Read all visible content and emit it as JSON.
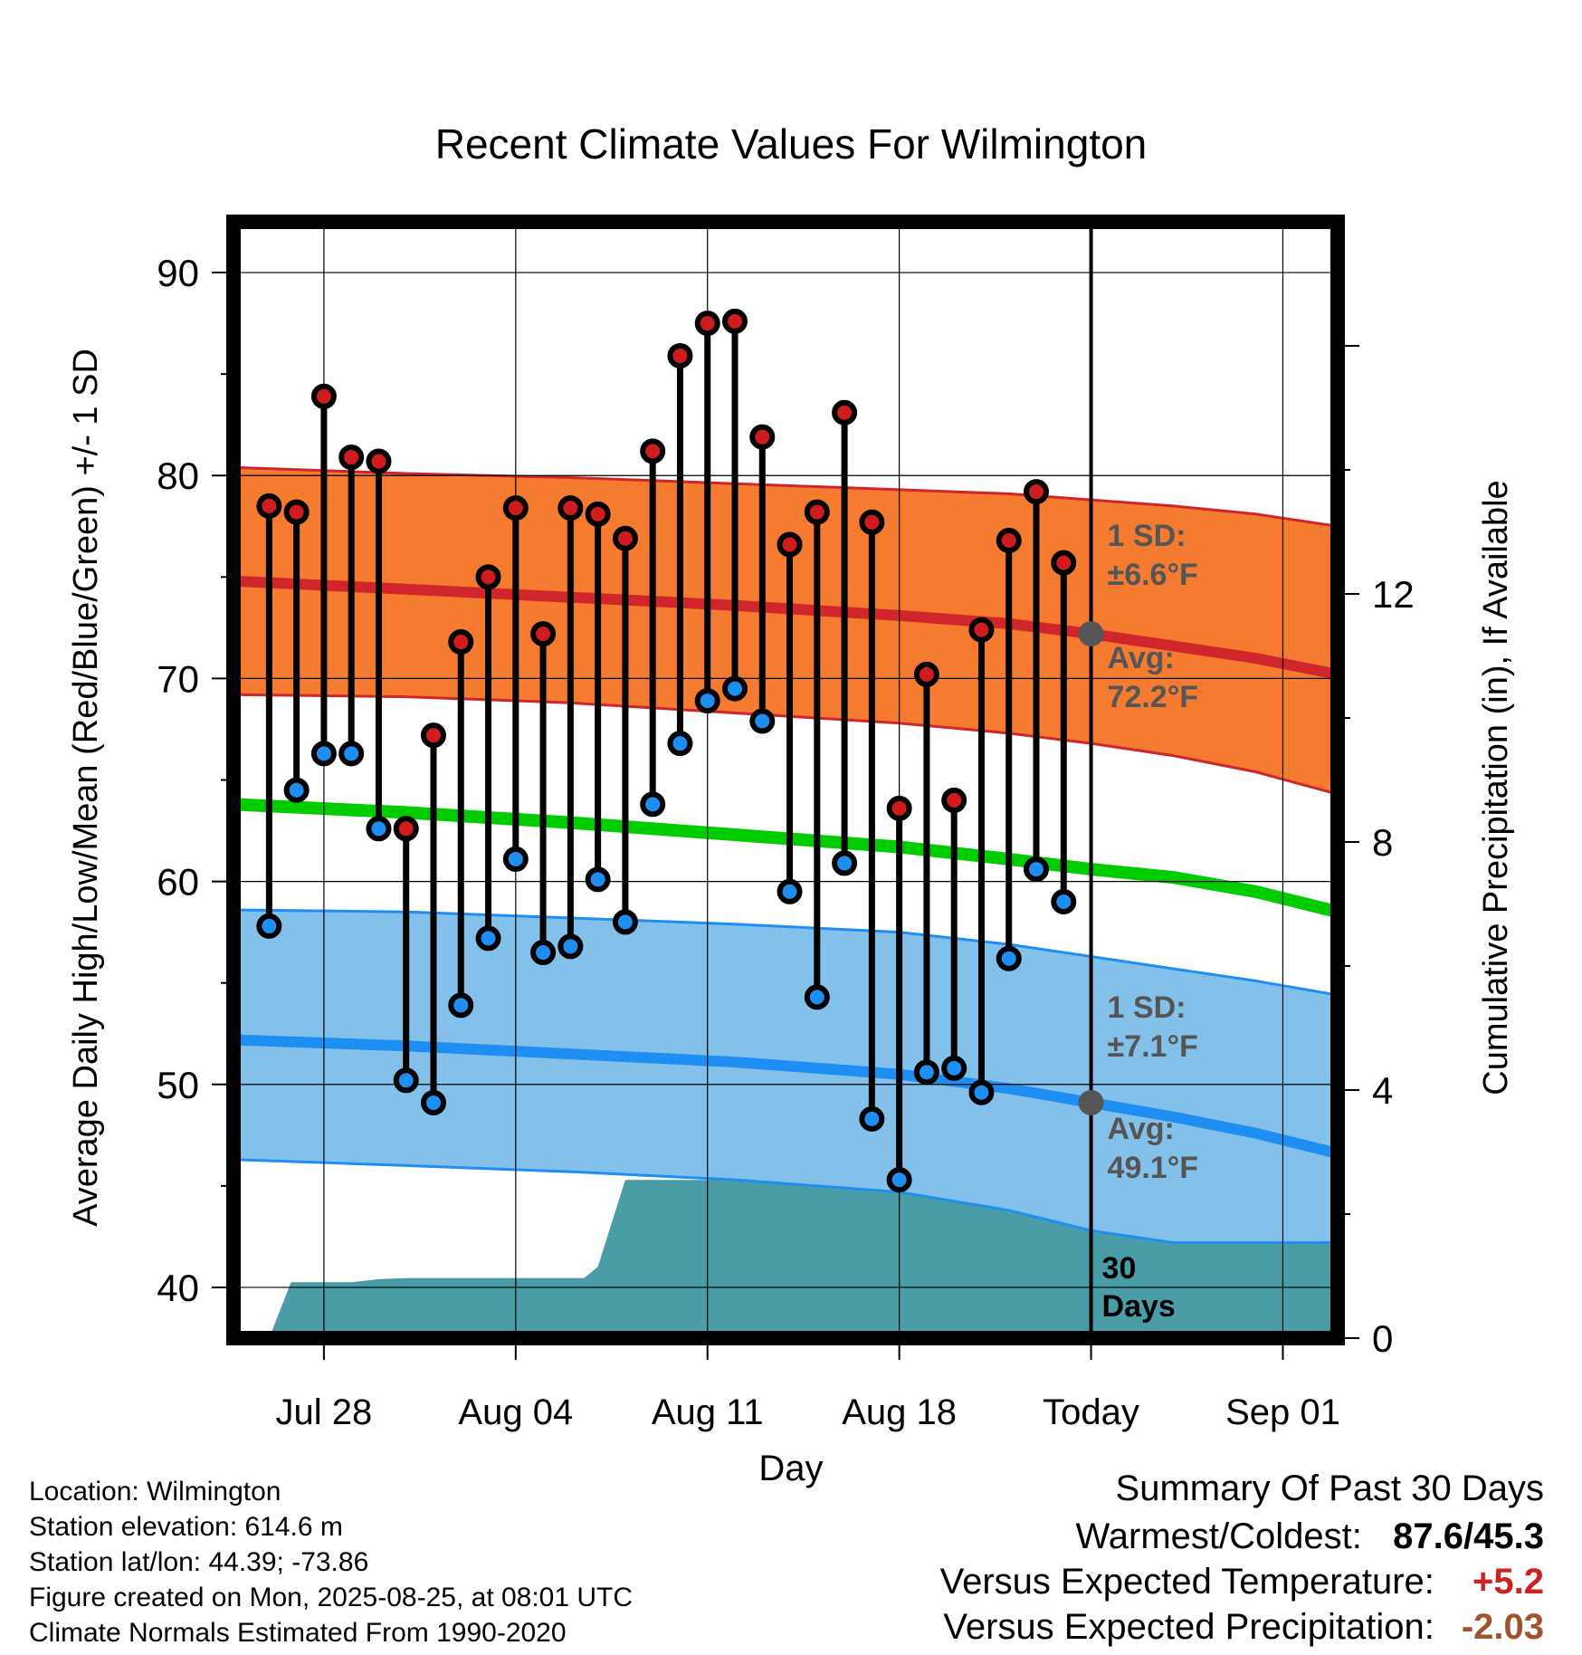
{
  "chart_data": {
    "type": "line",
    "title": "Recent Climate Values For Wilmington",
    "xlabel": "Day",
    "ylabel": "Average Daily High/Low/Mean (Red/Blue/Green) +/- 1 SD",
    "y2label": "Cumulative Precipitation (in), If Available",
    "ylim": [
      37.5,
      92.5
    ],
    "y2lim": [
      0,
      18
    ],
    "y_ticks": [
      40,
      50,
      60,
      70,
      80,
      90
    ],
    "y2_ticks": [
      0,
      4,
      8,
      12
    ],
    "x_ticks": [
      {
        "day": 3,
        "label": "Jul 28"
      },
      {
        "day": 10,
        "label": "Aug 04"
      },
      {
        "day": 17,
        "label": "Aug 11"
      },
      {
        "day": 24,
        "label": "Aug 18"
      },
      {
        "day": 31,
        "label": "Today"
      },
      {
        "day": 38,
        "label": "Sep 01"
      }
    ],
    "x_range_days": [
      -0.3,
      40
    ],
    "today_day": 31,
    "days": [
      1,
      2,
      3,
      4,
      5,
      6,
      7,
      8,
      9,
      10,
      11,
      12,
      13,
      14,
      15,
      16,
      17,
      18,
      19,
      20,
      21,
      22,
      23,
      24,
      25,
      26,
      27,
      28,
      29,
      30
    ],
    "series": [
      {
        "name": "High",
        "color": "#d01c1f",
        "values": [
          78.5,
          78.2,
          83.9,
          80.9,
          80.7,
          62.6,
          67.2,
          71.8,
          75.0,
          78.4,
          72.2,
          78.4,
          78.1,
          76.9,
          81.2,
          85.9,
          87.5,
          87.6,
          81.9,
          76.6,
          78.2,
          83.1,
          77.7,
          63.6,
          70.2,
          64.0,
          72.4,
          76.8,
          79.2,
          75.7
        ]
      },
      {
        "name": "Low",
        "color": "#1f8ef2",
        "values": [
          57.8,
          64.5,
          66.3,
          66.3,
          62.6,
          50.2,
          49.1,
          53.9,
          57.2,
          61.1,
          56.5,
          56.8,
          60.1,
          58.0,
          63.8,
          66.8,
          68.9,
          69.5,
          67.9,
          59.5,
          54.3,
          60.9,
          48.3,
          45.3,
          50.6,
          50.8,
          49.6,
          56.2,
          60.6,
          59.0
        ]
      }
    ],
    "normals": {
      "days": [
        -0.3,
        6,
        12,
        18,
        24,
        28,
        31,
        34,
        37,
        40
      ],
      "high_avg": [
        74.8,
        74.4,
        74.0,
        73.6,
        73.1,
        72.7,
        72.2,
        71.6,
        71.0,
        70.2
      ],
      "high_upper": [
        80.4,
        80.1,
        79.9,
        79.6,
        79.3,
        79.1,
        78.8,
        78.5,
        78.1,
        77.5
      ],
      "high_lower": [
        69.2,
        69.1,
        68.8,
        68.3,
        67.8,
        67.3,
        66.8,
        66.2,
        65.4,
        64.3
      ],
      "mean": [
        63.8,
        63.4,
        62.9,
        62.3,
        61.7,
        61.1,
        60.6,
        60.2,
        59.5,
        58.5
      ],
      "low_avg": [
        52.2,
        51.9,
        51.5,
        51.1,
        50.5,
        49.8,
        49.1,
        48.4,
        47.6,
        46.6
      ],
      "low_upper": [
        58.6,
        58.5,
        58.2,
        57.9,
        57.5,
        56.9,
        56.3,
        55.7,
        55.1,
        54.4
      ],
      "low_lower": [
        46.3,
        46.0,
        45.7,
        45.3,
        44.7,
        43.8,
        42.8,
        42.2,
        42.2,
        42.2
      ]
    },
    "precipitation": {
      "unit": "in",
      "days": [
        1,
        1.8,
        3,
        4,
        5,
        6,
        8,
        10,
        11,
        12,
        12.5,
        13,
        14,
        15,
        16,
        17,
        18,
        19,
        20,
        21,
        22,
        22.3,
        23,
        24,
        25,
        26,
        27,
        28,
        29,
        30,
        31,
        40
      ],
      "values": [
        0,
        0.9,
        0.9,
        0.9,
        0.95,
        0.97,
        0.97,
        0.97,
        0.97,
        0.97,
        0.97,
        1.15,
        2.55,
        2.55,
        2.55,
        2.55,
        2.55,
        2.55,
        2.55,
        2.55,
        2.55,
        2.55,
        2.65,
        2.65,
        2.65,
        2.67,
        2.67,
        2.67,
        2.67,
        2.67,
        2.67,
        2.67
      ]
    },
    "annotations": {
      "high_sd_label": "1 SD:",
      "high_sd_value": "±6.6°F",
      "high_avg_label": "Avg:",
      "high_avg_value": "72.2°F",
      "high_avg_today": 72.2,
      "low_sd_label": "1 SD:",
      "low_sd_value": "±7.1°F",
      "low_avg_label": "Avg:",
      "low_avg_value": "49.1°F",
      "low_avg_today": 49.1,
      "window_label_1": "30",
      "window_label_2": "Days"
    },
    "colors": {
      "high_band": "#f47b30",
      "high_line": "#d0262b",
      "low_band": "#83c1ea",
      "low_line": "#1f8ef2",
      "mean_line": "#00cc00",
      "precip_fill": "#4a9ca6",
      "today_dot": "#555555",
      "annotation_text": "#555555"
    },
    "grid": true,
    "legend": "none"
  },
  "info": {
    "location": "Location: Wilmington",
    "elevation": "Station elevation: 614.6 m",
    "latlon": "Station lat/lon: 44.39; -73.86",
    "created": "Figure created on Mon, 2025-08-25, at 08:01 UTC",
    "normals": "Climate Normals Estimated From 1990-2020"
  },
  "summary": {
    "title": "Summary Of Past 30 Days",
    "warm_cold_label": "Warmest/Coldest:",
    "warm_cold_value": "87.6/45.3",
    "temp_label": "Versus Expected Temperature:",
    "temp_value": "+5.2",
    "temp_color": "#cc2222",
    "precip_label": "Versus Expected Precipitation:",
    "precip_value": "-2.03",
    "precip_color": "#a0522d"
  }
}
